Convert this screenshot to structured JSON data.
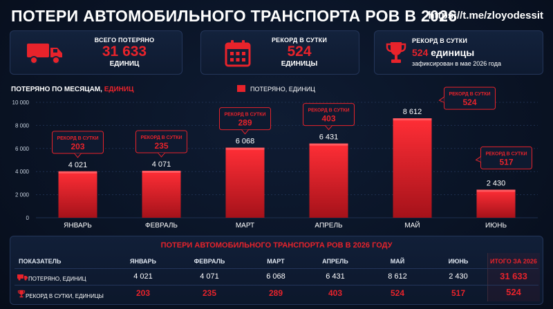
{
  "header": {
    "title": "ПОТЕРИ АВТОМОБИЛЬНОГО ТРАНСПОРТА РОВ В 2026",
    "link": "https://t.me/zloyodessit"
  },
  "cards": {
    "total": {
      "label": "ВСЕГО ПОТЕРЯНО",
      "value": "31 633",
      "unit": "ЕДИНИЦ",
      "icon": "truck-icon"
    },
    "record": {
      "label": "РЕКОРД В СУТКИ",
      "value": "524",
      "unit": "ЕДИНИЦЫ",
      "icon": "calendar-icon"
    },
    "record_info": {
      "label": "РЕКОРД В СУТКИ",
      "value": "524",
      "value_suffix": " единицы",
      "sub": "зафиксирован в мае 2026 года",
      "icon": "trophy-icon"
    }
  },
  "chart_data": {
    "type": "bar",
    "title_prefix": "ПОТЕРЯНО ПО МЕСЯЦАМ,",
    "title_accent": " ЕДИНИЦ",
    "legend": "ПОТЕРЯНО, ЕДИНИЦ",
    "categories": [
      "ЯНВАРЬ",
      "ФЕВРАЛЬ",
      "МАРТ",
      "АПРЕЛЬ",
      "МАЙ",
      "ИЮНЬ"
    ],
    "values": [
      4021,
      4071,
      6068,
      6431,
      8612,
      2430
    ],
    "value_labels": [
      "4 021",
      "4 071",
      "6 068",
      "6 431",
      "8 612",
      "2 430"
    ],
    "record_label": "РЕКОРД В СУТКИ",
    "records": [
      203,
      235,
      289,
      403,
      524,
      517
    ],
    "ylim": [
      0,
      10000
    ],
    "yticks": [
      0,
      2000,
      4000,
      6000,
      8000,
      10000
    ],
    "ytick_labels": [
      "0",
      "2 000",
      "4 000",
      "6 000",
      "8 000",
      "10 000"
    ],
    "bar_color": "#e8232b",
    "grid": true
  },
  "table": {
    "title": "ПОТЕРИ АВТОМОБИЛЬНОГО ТРАНСПОРТА РОВ В 2026 ГОДУ",
    "headers": [
      "ПОКАЗАТЕЛЬ",
      "ЯНВАРЬ",
      "ФЕВРАЛЬ",
      "МАРТ",
      "АПРЕЛЬ",
      "МАЙ",
      "ИЮНЬ",
      "ИТОГО ЗА 2026"
    ],
    "rows": [
      {
        "label": "ПОТЕРЯНО, ЕДИНИЦ",
        "icon": "truck-icon",
        "values": [
          "4 021",
          "4 071",
          "6 068",
          "6 431",
          "8 612",
          "2 430"
        ],
        "total": "31 633"
      },
      {
        "label": "РЕКОРД В СУТКИ, ЕДИНИЦЫ",
        "icon": "trophy-icon",
        "values": [
          "203",
          "235",
          "289",
          "403",
          "524",
          "517"
        ],
        "total": "524"
      }
    ]
  },
  "colors": {
    "accent": "#e8232b",
    "background": "#0a1426",
    "panel": "#13223c"
  }
}
